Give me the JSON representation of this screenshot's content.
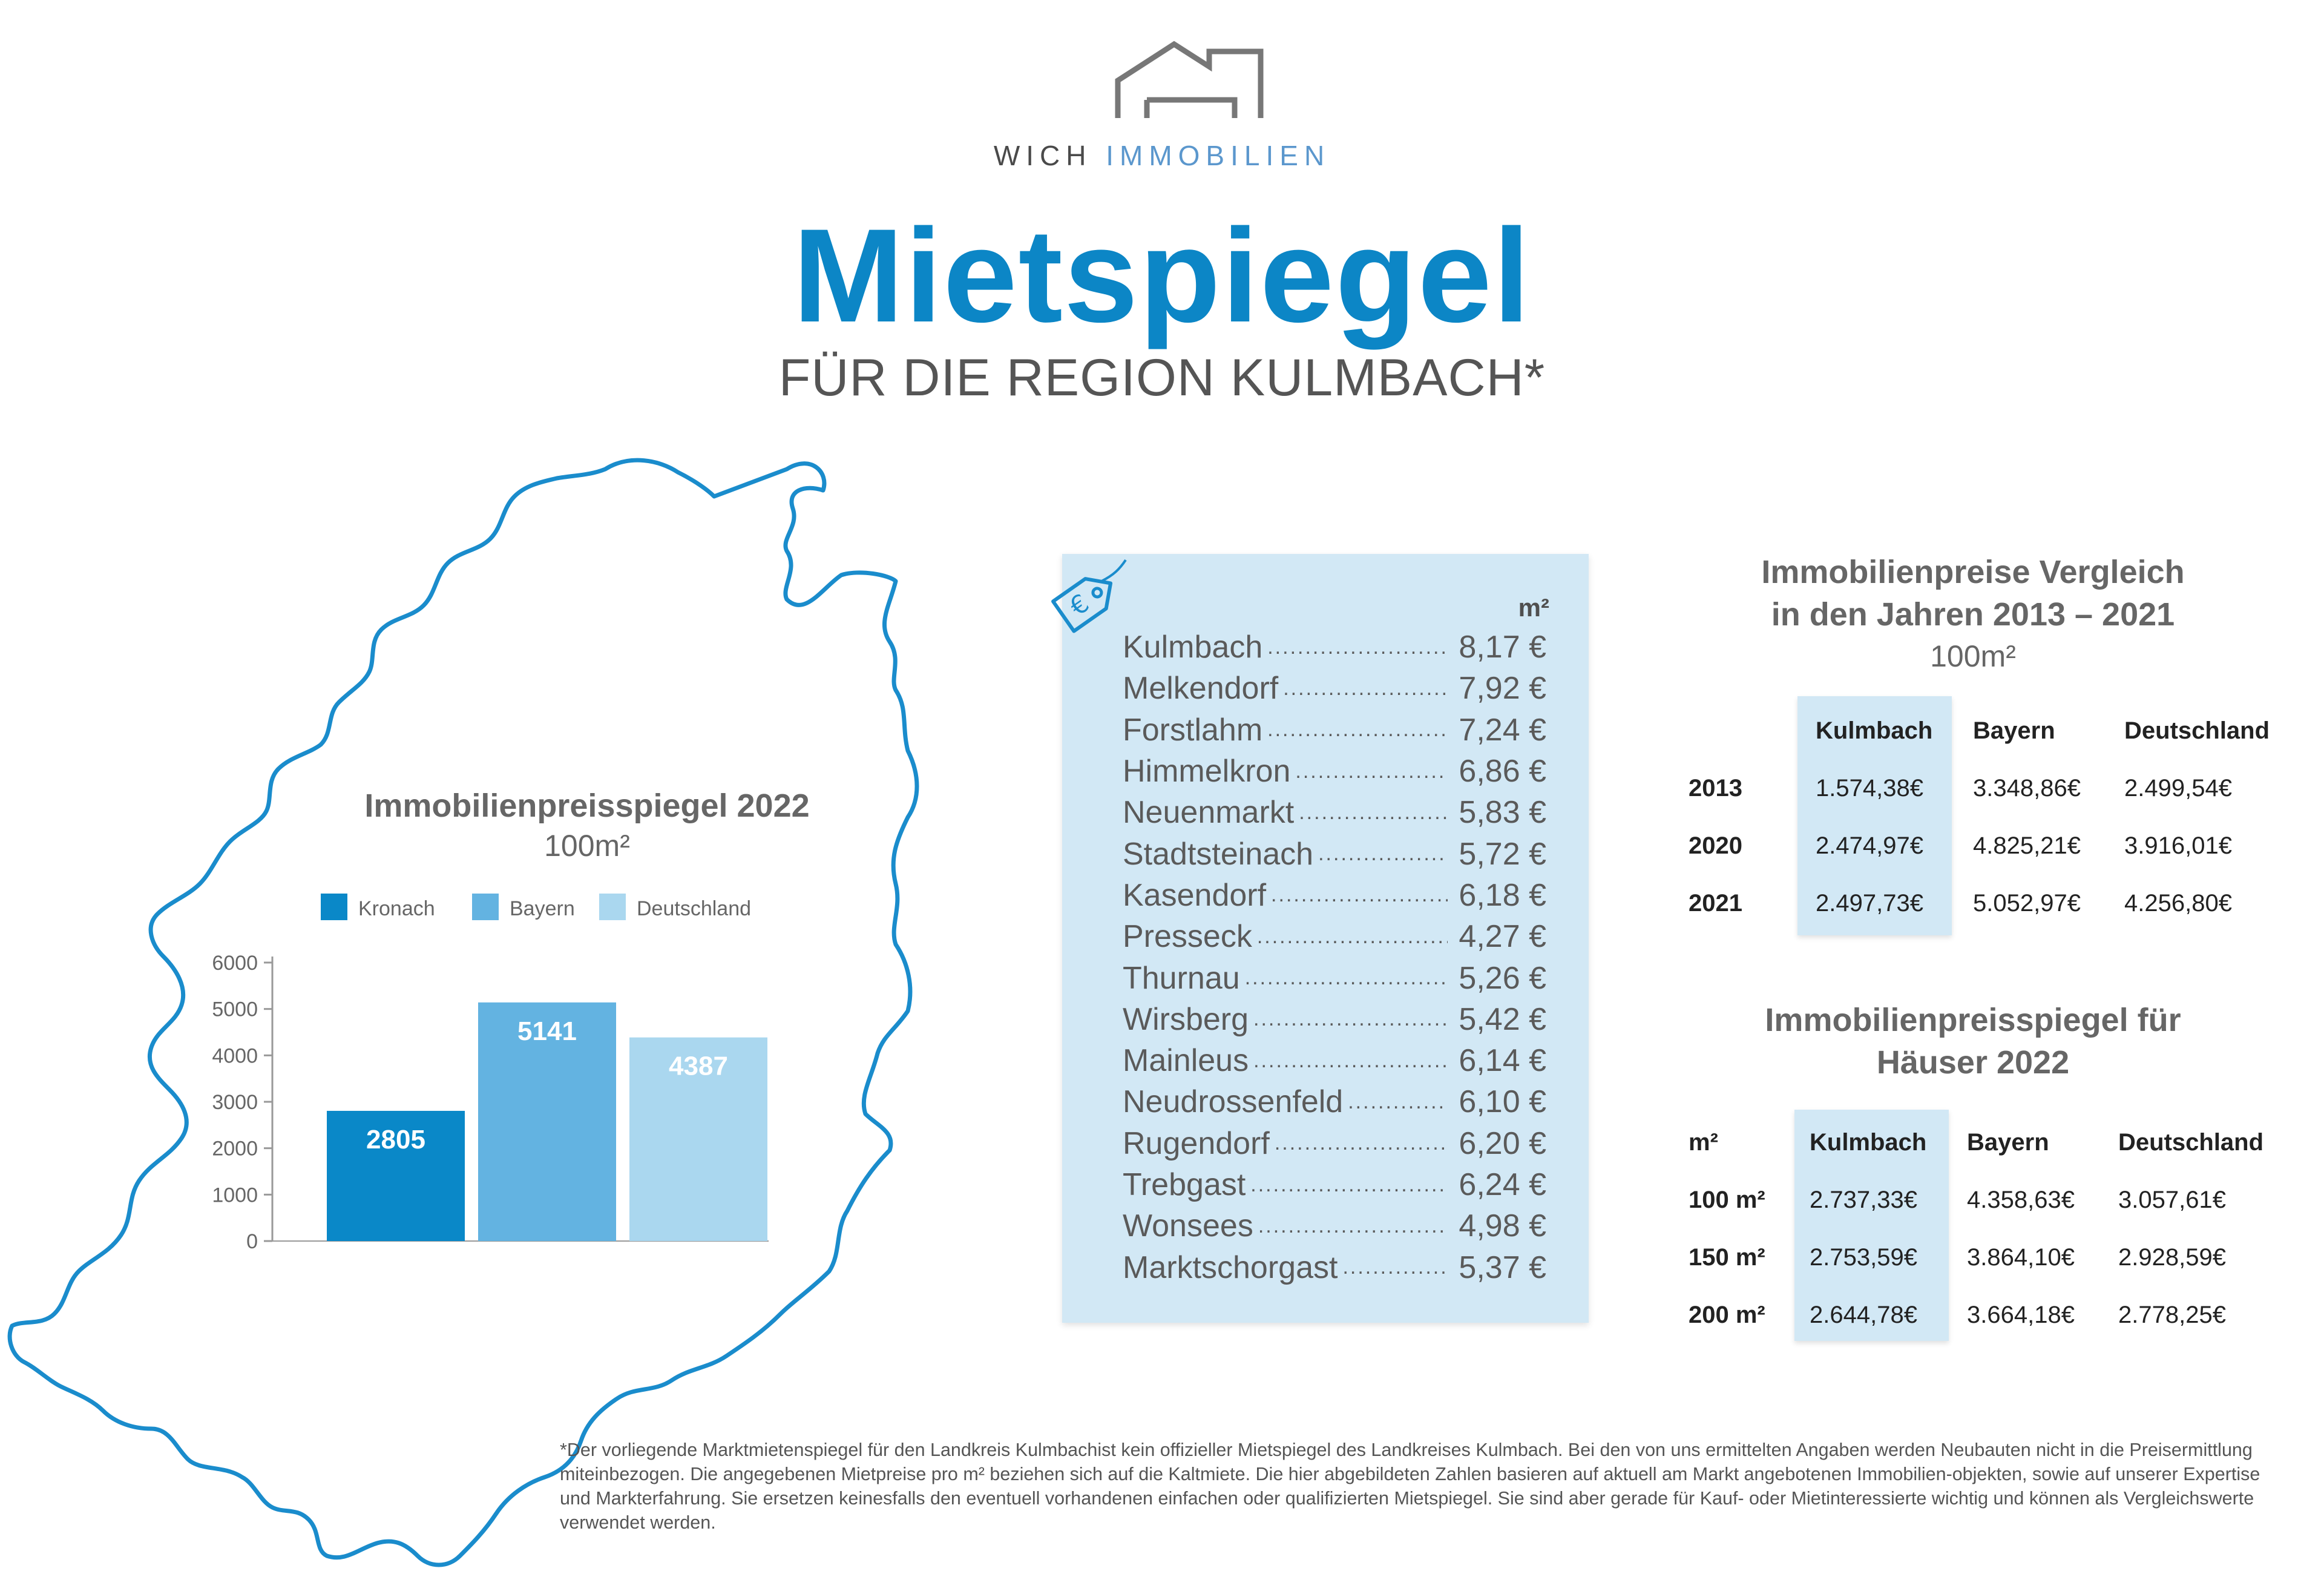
{
  "brand": {
    "name_part1": "WICH",
    "name_part2": "IMMOBILIEN",
    "logo_icon": "house-outline-logo",
    "accent_color": "#5b97cd"
  },
  "header": {
    "title": "Mietspiegel",
    "subtitle": "FÜR DIE REGION KULMBACH*",
    "title_color": "#0c86c6"
  },
  "map": {
    "icon": "region-outline-map",
    "stroke_color": "#1a8ccc"
  },
  "chart_data": {
    "type": "bar",
    "title": "Immobilienpreisspiegel 2022",
    "subtitle": "100m²",
    "categories": [
      "Kronach",
      "Bayern",
      "Deutschland"
    ],
    "values": [
      2805,
      5141,
      4387
    ],
    "colors": [
      "#0a88c8",
      "#63b3e1",
      "#aad7ef"
    ],
    "ylim": [
      0,
      6000
    ],
    "yticks": [
      0,
      1000,
      2000,
      3000,
      4000,
      5000,
      6000
    ],
    "legend_position": "top",
    "xlabel": "",
    "ylabel": ""
  },
  "rent": {
    "tag_icon": "euro-price-tag-icon",
    "unit_header": "m²",
    "items": [
      {
        "city": "Kulmbach",
        "price": "8,17 €"
      },
      {
        "city": "Melkendorf",
        "price": "7,92 €"
      },
      {
        "city": "Forstlahm",
        "price": "7,24 €"
      },
      {
        "city": "Himmelkron",
        "price": "6,86 €"
      },
      {
        "city": "Neuenmarkt",
        "price": "5,83 €"
      },
      {
        "city": "Stadtsteinach",
        "price": "5,72 €"
      },
      {
        "city": "Kasendorf",
        "price": "6,18 €"
      },
      {
        "city": "Presseck",
        "price": "4,27 €"
      },
      {
        "city": "Thurnau",
        "price": "5,26 €"
      },
      {
        "city": "Wirsberg",
        "price": "5,42 €"
      },
      {
        "city": "Mainleus",
        "price": "6,14 €"
      },
      {
        "city": "Neudrossenfeld",
        "price": "6,10 €"
      },
      {
        "city": "Rugendorf",
        "price": "6,20 €"
      },
      {
        "city": "Trebgast",
        "price": "6,24 €"
      },
      {
        "city": "Wonsees",
        "price": "4,98 €"
      },
      {
        "city": "Marktschorgast",
        "price": "5,37 €"
      }
    ]
  },
  "comparison": {
    "title_line1": "Immobilienpreise Vergleich",
    "title_line2": "in den Jahren 2013 – 2021",
    "unit": "100m²",
    "headers": [
      "",
      "Kulmbach",
      "Bayern",
      "Deutschland"
    ],
    "rows": [
      [
        "2013",
        "1.574,38€",
        "3.348,86€",
        "2.499,54€"
      ],
      [
        "2020",
        "2.474,97€",
        "4.825,21€",
        "3.916,01€"
      ],
      [
        "2021",
        "2.497,73€",
        "5.052,97€",
        "4.256,80€"
      ]
    ]
  },
  "houses": {
    "title_line1": "Immobilienpreisspiegel für",
    "title_line2": "Häuser 2022",
    "headers": [
      "m²",
      "Kulmbach",
      "Bayern",
      "Deutschland"
    ],
    "rows": [
      [
        "100 m²",
        "2.737,33€",
        "4.358,63€",
        "3.057,61€"
      ],
      [
        "150 m²",
        "2.753,59€",
        "3.864,10€",
        "2.928,59€"
      ],
      [
        "200 m²",
        "2.644,78€",
        "3.664,18€",
        "2.778,25€"
      ]
    ]
  },
  "footnote": "*Der vorliegende Marktmietenspiegel für den Landkreis Kulmbachist kein offizieller Mietspiegel des Landkreises Kulmbach. Bei den von uns ermittelten Angaben werden Neubauten nicht in die Preisermittlung miteinbezogen. Die angegebenen Mietpreise pro m² beziehen sich auf die Kaltmiete. Die hier abgebildeten Zahlen basieren auf aktuell am Markt angebotenen Immobilien-objekten, sowie auf unserer Expertise und Markterfahrung. Sie ersetzen keinesfalls den eventuell vorhandenen einfachen oder qualifizierten Mietspiegel. Sie sind aber gerade für Kauf- oder Mietinteressierte wichtig und können als Vergleichswerte verwendet werden."
}
